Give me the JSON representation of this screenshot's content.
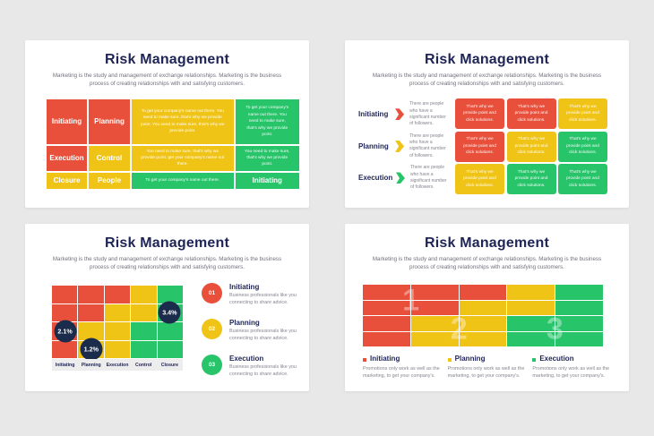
{
  "colors": {
    "red": "#e8503c",
    "yellow": "#f0c417",
    "green": "#27c46a",
    "navy": "#1e2456",
    "badge_navy": "#1b2b4b",
    "card_bg": "#ffffff",
    "page_bg": "#e8e8e8",
    "strip_bg": "#ededed"
  },
  "shared": {
    "title": "Risk Management",
    "subtitle": "Marketing is the study and management of exchange relationships. Marketing is the business process of creating relationships with and satisfying customers."
  },
  "slide1": {
    "rows": [
      [
        {
          "text": "Initiating",
          "color": "red"
        },
        {
          "text": "Planning",
          "color": "red"
        },
        {
          "text": "To get your company's name out there. You need to make sure, that's why we provide point. You need to make sure, that's why we provide point.",
          "color": "yellow"
        },
        {
          "text": "To get your company's name out there. You need to make sure, that's why we provide point.",
          "color": "green"
        }
      ],
      [
        {
          "text": "Execution",
          "color": "red"
        },
        {
          "text": "Control",
          "color": "yellow"
        },
        {
          "text": "You need to make sure, that's why we provide point, get your company's name out there.",
          "color": "yellow"
        },
        {
          "text": "You need to make sure, that's why we provide point.",
          "color": "green"
        }
      ],
      [
        {
          "text": "Closure",
          "color": "yellow"
        },
        {
          "text": "People",
          "color": "yellow"
        },
        {
          "text": "To get your company's name out there.",
          "color": "green"
        },
        {
          "text": "Initiating",
          "color": "green"
        }
      ]
    ]
  },
  "slide2": {
    "items": [
      {
        "label": "Initiating",
        "color": "red",
        "text": "There are people who have a significant number of followers."
      },
      {
        "label": "Planning",
        "color": "yellow",
        "text": "There are people who have a significant number of followers."
      },
      {
        "label": "Execution",
        "color": "green",
        "text": "There are people who have a significant number of followers."
      }
    ],
    "cell_text": "That's why we provide point and click solutions.",
    "grid": [
      [
        "red",
        "red",
        "yellow"
      ],
      [
        "red",
        "yellow",
        "green"
      ],
      [
        "yellow",
        "green",
        "green"
      ]
    ]
  },
  "slide3": {
    "columns": [
      "Initiating",
      "Planning",
      "Execution",
      "Control",
      "Closure"
    ],
    "grid": [
      [
        "red",
        "red",
        "red",
        "yellow",
        "green"
      ],
      [
        "red",
        "red",
        "yellow",
        "yellow",
        "green"
      ],
      [
        "red",
        "yellow",
        "yellow",
        "green",
        "green"
      ],
      [
        "red",
        "yellow",
        "yellow",
        "green",
        "green"
      ]
    ],
    "badges": [
      {
        "value": "2.1%",
        "col": 0,
        "row": 2
      },
      {
        "value": "1.2%",
        "col": 1,
        "row": 3
      },
      {
        "value": "3.4%",
        "col": 4,
        "row": 1
      }
    ],
    "legend": [
      {
        "num": "01",
        "color": "red",
        "title": "Initiating",
        "text": "Business professionals like you connecting to share advice."
      },
      {
        "num": "02",
        "color": "yellow",
        "title": "Planning",
        "text": "Business professionals like you connecting to share advice."
      },
      {
        "num": "03",
        "color": "green",
        "title": "Execution",
        "text": "Business professionals like you connecting to share advice."
      }
    ]
  },
  "slide4": {
    "grid": [
      [
        "red",
        "red",
        "red",
        "yellow",
        "green"
      ],
      [
        "red",
        "red",
        "yellow",
        "yellow",
        "green"
      ],
      [
        "red",
        "yellow",
        "yellow",
        "green",
        "green"
      ],
      [
        "red",
        "yellow",
        "yellow",
        "green",
        "green"
      ]
    ],
    "watermarks": [
      "1",
      "2",
      "3"
    ],
    "legend": [
      {
        "color": "red",
        "title": "Initiating",
        "text": "Promotions only work as well as the marketing, to get your company's."
      },
      {
        "color": "yellow",
        "title": "Planning",
        "text": "Promotions only work as well as the marketing, to get your company's."
      },
      {
        "color": "green",
        "title": "Execution",
        "text": "Promotions only work as well as the marketing, to get your company's."
      }
    ]
  }
}
